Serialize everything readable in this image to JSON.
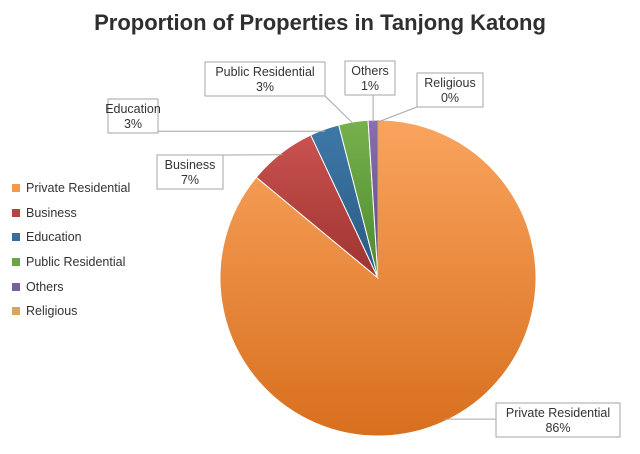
{
  "chart_data": {
    "type": "pie",
    "title": "Proportion of Properties in Tanjong Katong",
    "categories": [
      "Private Residential",
      "Business",
      "Education",
      "Public Residential",
      "Others",
      "Religious"
    ],
    "values": [
      86,
      7,
      3,
      3,
      1,
      0
    ],
    "value_labels": [
      "86%",
      "7%",
      "3%",
      "3%",
      "1%",
      "0%"
    ],
    "colors": [
      "#F79646",
      "#C0504D",
      "#4F81BD",
      "#9BBB59",
      "#8064A2",
      "#4BACC6"
    ],
    "legend_position": "left"
  }
}
